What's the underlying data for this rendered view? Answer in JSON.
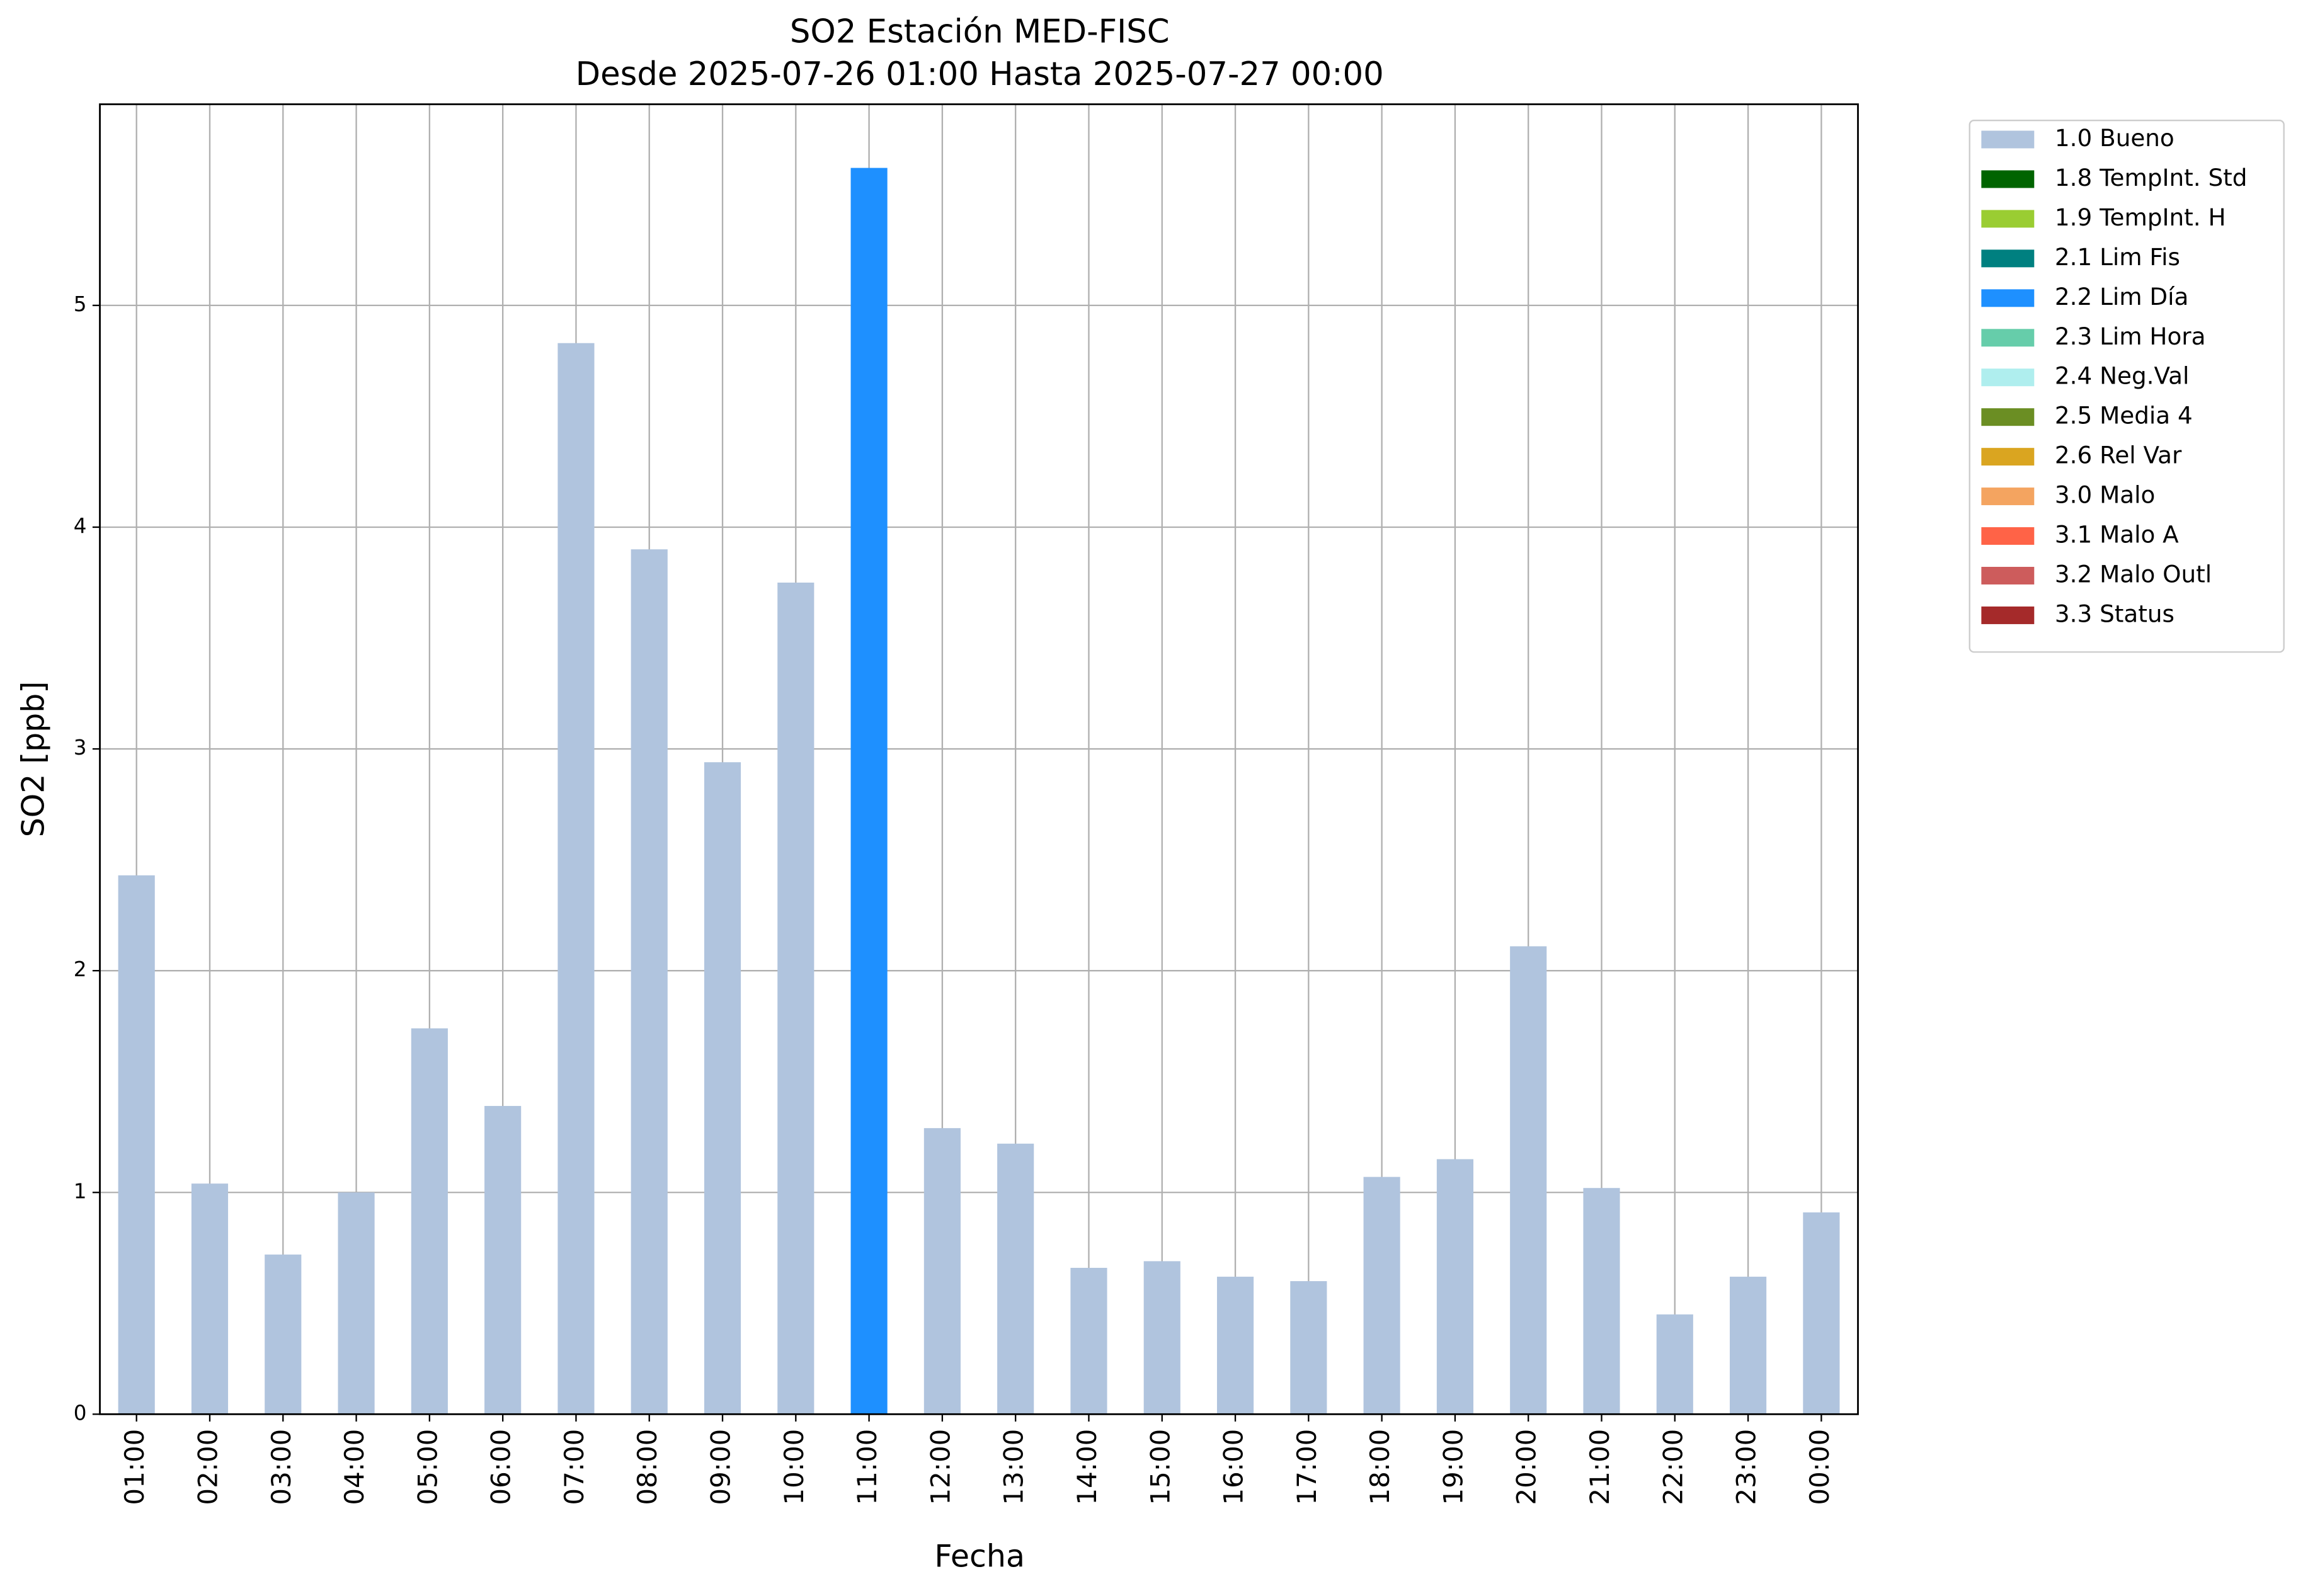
{
  "chart_data": {
    "type": "bar",
    "title": "SO2 Estación MED-FISC",
    "subtitle": "Desde 2025-07-26 01:00 Hasta 2025-07-27 00:00",
    "x_label": "Fecha",
    "y_label": "SO2 [ppb]",
    "categories": [
      "01:00",
      "02:00",
      "03:00",
      "04:00",
      "05:00",
      "06:00",
      "07:00",
      "08:00",
      "09:00",
      "10:00",
      "11:00",
      "12:00",
      "13:00",
      "14:00",
      "15:00",
      "16:00",
      "17:00",
      "18:00",
      "19:00",
      "20:00",
      "21:00",
      "22:00",
      "23:00",
      "00:00"
    ],
    "stacked": true,
    "grid": true,
    "legend": "outside-right",
    "ylim": [
      0,
      5.907
    ],
    "yticks": [
      0,
      1,
      2,
      3,
      4,
      5
    ],
    "series": [
      {
        "name": "1.0 Bueno",
        "color": "#b0c4de",
        "values": [
          2.43,
          1.04,
          0.72,
          1.0,
          1.74,
          1.39,
          4.83,
          3.9,
          2.94,
          3.75,
          null,
          1.29,
          1.22,
          0.66,
          0.69,
          0.62,
          0.6,
          1.07,
          1.15,
          2.11,
          1.02,
          0.45,
          0.62,
          0.91
        ]
      },
      {
        "name": "1.8 TempInt. Std",
        "color": "#006400",
        "values": [
          null,
          null,
          null,
          null,
          null,
          null,
          null,
          null,
          null,
          null,
          null,
          null,
          null,
          null,
          null,
          null,
          null,
          null,
          null,
          null,
          null,
          null,
          null,
          null
        ]
      },
      {
        "name": "1.9 TempInt. H",
        "color": "#9acd32",
        "values": [
          null,
          null,
          null,
          null,
          null,
          null,
          null,
          null,
          null,
          null,
          null,
          null,
          null,
          null,
          null,
          null,
          null,
          null,
          null,
          null,
          null,
          null,
          null,
          null
        ]
      },
      {
        "name": "2.1 Lim Fis",
        "color": "#008080",
        "values": [
          null,
          null,
          null,
          null,
          null,
          null,
          null,
          null,
          null,
          null,
          null,
          null,
          null,
          null,
          null,
          null,
          null,
          null,
          null,
          null,
          null,
          null,
          null,
          null
        ]
      },
      {
        "name": "2.2 Lim Día",
        "color": "#1e90ff",
        "values": [
          null,
          null,
          null,
          null,
          null,
          null,
          null,
          null,
          null,
          null,
          5.62,
          null,
          null,
          null,
          null,
          null,
          null,
          null,
          null,
          null,
          null,
          null,
          null,
          null
        ]
      },
      {
        "name": "2.3 Lim Hora",
        "color": "#66cdaa",
        "values": [
          null,
          null,
          null,
          null,
          null,
          null,
          null,
          null,
          null,
          null,
          null,
          null,
          null,
          null,
          null,
          null,
          null,
          null,
          null,
          null,
          null,
          null,
          null,
          null
        ]
      },
      {
        "name": "2.4 Neg.Val",
        "color": "#afeeee",
        "values": [
          null,
          null,
          null,
          null,
          null,
          null,
          null,
          null,
          null,
          null,
          null,
          null,
          null,
          null,
          null,
          null,
          null,
          null,
          null,
          null,
          null,
          null,
          null,
          null
        ]
      },
      {
        "name": "2.5 Media 4",
        "color": "#6b8e23",
        "values": [
          null,
          null,
          null,
          null,
          null,
          null,
          null,
          null,
          null,
          null,
          null,
          null,
          null,
          null,
          null,
          null,
          null,
          null,
          null,
          null,
          null,
          null,
          null,
          null
        ]
      },
      {
        "name": "2.6 Rel Var",
        "color": "#daa520",
        "values": [
          null,
          null,
          null,
          null,
          null,
          null,
          null,
          null,
          null,
          null,
          null,
          null,
          null,
          null,
          null,
          null,
          null,
          null,
          null,
          null,
          null,
          null,
          null,
          null
        ]
      },
      {
        "name": "3.0 Malo",
        "color": "#f4a460",
        "values": [
          null,
          null,
          null,
          null,
          null,
          null,
          null,
          null,
          null,
          null,
          null,
          null,
          null,
          null,
          null,
          null,
          null,
          null,
          null,
          null,
          null,
          null,
          null,
          null
        ]
      },
      {
        "name": "3.1 Malo A",
        "color": "#ff6347",
        "values": [
          null,
          null,
          null,
          null,
          null,
          null,
          null,
          null,
          null,
          null,
          null,
          null,
          null,
          null,
          null,
          null,
          null,
          null,
          null,
          null,
          null,
          null,
          null,
          null
        ]
      },
      {
        "name": "3.2 Malo Outl",
        "color": "#cd5c5c",
        "values": [
          null,
          null,
          null,
          null,
          null,
          null,
          null,
          null,
          null,
          null,
          null,
          null,
          null,
          null,
          null,
          null,
          null,
          null,
          null,
          null,
          null,
          null,
          null,
          null
        ]
      },
      {
        "name": "3.3 Status",
        "color": "#a52a2a",
        "values": [
          null,
          null,
          null,
          null,
          null,
          null,
          null,
          null,
          null,
          null,
          null,
          null,
          null,
          null,
          null,
          null,
          null,
          null,
          null,
          null,
          null,
          null,
          null,
          null
        ]
      }
    ]
  }
}
